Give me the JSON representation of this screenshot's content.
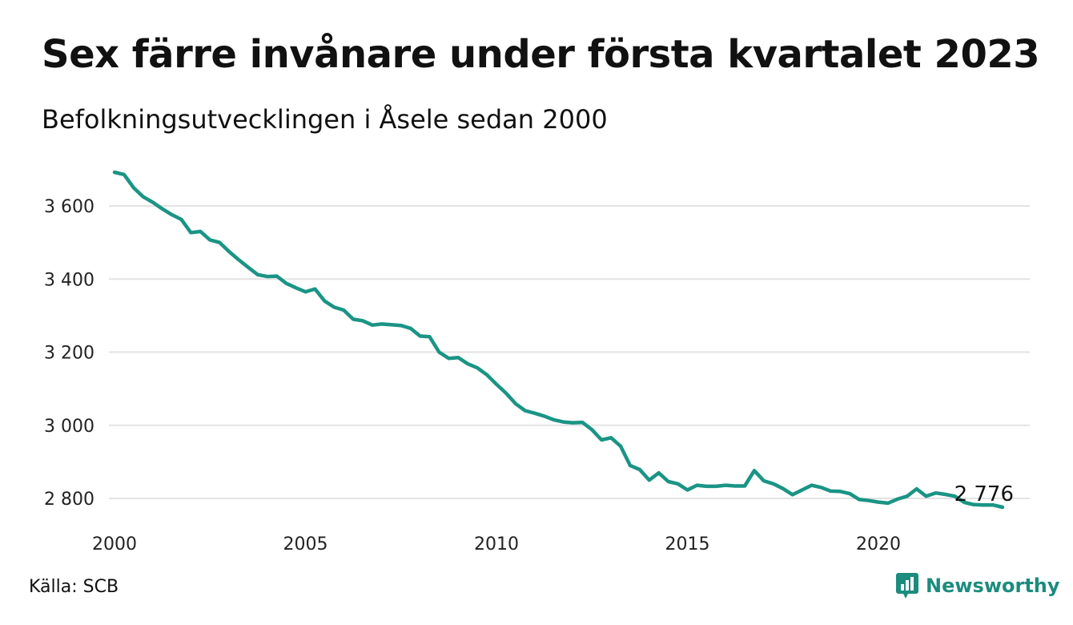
{
  "title": "Sex färre invånare under första kvartalet 2023",
  "subtitle": "Befolkningsutvecklingen i Åsele sedan 2000",
  "source": "Källa: SCB",
  "brand": "Newsworthy",
  "colors": {
    "line": "#1a9485",
    "grid": "#e3e3e3",
    "brand": "#1c8c7e"
  },
  "chart_data": {
    "type": "line",
    "title": "Sex färre invånare under första kvartalet 2023",
    "subtitle": "Befolkningsutvecklingen i Åsele sedan 2000",
    "xlabel": "",
    "ylabel": "",
    "grid": true,
    "xlim": [
      2000.0,
      2023.25
    ],
    "ylim": [
      2780,
      3700
    ],
    "x_ticks": [
      2000,
      2005,
      2010,
      2015,
      2020
    ],
    "x_tick_labels": [
      "2000",
      "2005",
      "2010",
      "2015",
      "2020"
    ],
    "y_ticks": [
      2800,
      3000,
      3200,
      3400,
      3600
    ],
    "y_tick_labels": [
      "2 800",
      "3 000",
      "3 200",
      "3 400",
      "3 600"
    ],
    "end_label": "2 776",
    "series": [
      {
        "x": [
          2000.0,
          2000.25,
          2000.5,
          2000.75,
          2001.0,
          2001.25,
          2001.5,
          2001.75,
          2002.0,
          2002.25,
          2002.5,
          2002.75,
          2003.0,
          2003.25,
          2003.5,
          2003.75,
          2004.0,
          2004.25,
          2004.5,
          2004.75,
          2005.0,
          2005.25,
          2005.5,
          2005.75,
          2006.0,
          2006.25,
          2006.5,
          2006.75,
          2007.0,
          2007.25,
          2007.5,
          2007.75,
          2008.0,
          2008.25,
          2008.5,
          2008.75,
          2009.0,
          2009.25,
          2009.5,
          2009.75,
          2010.0,
          2010.25,
          2010.5,
          2010.75,
          2011.0,
          2011.25,
          2011.5,
          2011.75,
          2012.0,
          2012.25,
          2012.5,
          2012.75,
          2013.0,
          2013.25,
          2013.5,
          2013.75,
          2014.0,
          2014.25,
          2014.5,
          2014.75,
          2015.0,
          2015.25,
          2015.5,
          2015.75,
          2016.0,
          2016.25,
          2016.5,
          2016.75,
          2017.0,
          2017.25,
          2017.5,
          2017.75,
          2018.0,
          2018.25,
          2018.5,
          2018.75,
          2019.0,
          2019.25,
          2019.5,
          2019.75,
          2020.0,
          2020.25,
          2020.5,
          2020.75,
          2021.0,
          2021.25,
          2021.5,
          2021.75,
          2022.0,
          2022.25,
          2022.5,
          2022.75,
          2023.0,
          2023.25
        ],
        "values": [
          3692,
          3686,
          3650,
          3625,
          3610,
          3592,
          3576,
          3563,
          3527,
          3530,
          3507,
          3500,
          3475,
          3453,
          3432,
          3412,
          3407,
          3408,
          3388,
          3376,
          3365,
          3373,
          3340,
          3323,
          3315,
          3290,
          3286,
          3274,
          3277,
          3275,
          3273,
          3265,
          3244,
          3242,
          3200,
          3183,
          3185,
          3168,
          3157,
          3138,
          3112,
          3088,
          3059,
          3040,
          3033,
          3025,
          3015,
          3009,
          3007,
          3008,
          2988,
          2960,
          2966,
          2943,
          2890,
          2879,
          2850,
          2870,
          2846,
          2840,
          2823,
          2836,
          2833,
          2833,
          2836,
          2834,
          2834,
          2876,
          2848,
          2840,
          2827,
          2810,
          2823,
          2836,
          2830,
          2820,
          2819,
          2813,
          2797,
          2794,
          2790,
          2787,
          2798,
          2806,
          2826,
          2806,
          2815,
          2811,
          2806,
          2789,
          2783,
          2782,
          2782,
          2776
        ]
      }
    ]
  }
}
